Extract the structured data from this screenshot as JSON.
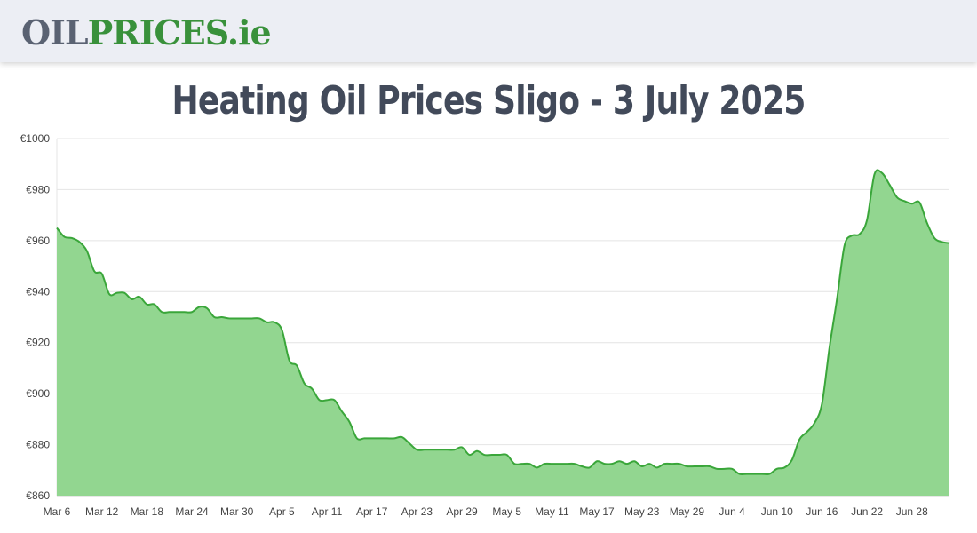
{
  "header": {
    "logo_part1": "OIL",
    "logo_part2": "PRICES.ie",
    "logo_colors": {
      "part1": "#5a6272",
      "part2": "#39913b"
    }
  },
  "page": {
    "title": "Heating Oil Prices Sligo - 3 July 2025"
  },
  "colors": {
    "line": "#3aa63a",
    "fill": "#92d690",
    "grid": "#e4e4e4",
    "title": "#424a5a",
    "header_bg": "#eceef4"
  },
  "chart_data": {
    "type": "area",
    "title": "",
    "xlabel": "",
    "ylabel": "",
    "grid": true,
    "ylim": [
      860,
      1000
    ],
    "y_ticks": [
      "€860",
      "€880",
      "€900",
      "€920",
      "€940",
      "€960",
      "€980",
      "€1000"
    ],
    "x_ticks": [
      "Mar 6",
      "Mar 12",
      "Mar 18",
      "Mar 24",
      "Mar 30",
      "Apr 5",
      "Apr 11",
      "Apr 17",
      "Apr 23",
      "Apr 29",
      "May 5",
      "May 11",
      "May 17",
      "May 23",
      "May 29",
      "Jun 4",
      "Jun 10",
      "Jun 16",
      "Jun 22",
      "Jun 28"
    ],
    "x_start": "2025-03-06",
    "x_end": "2025-07-03",
    "series": [
      {
        "points": [
          [
            "2025-03-06",
            965
          ],
          [
            "2025-03-07",
            961.5
          ],
          [
            "2025-03-08",
            961
          ],
          [
            "2025-03-09",
            959.5
          ],
          [
            "2025-03-10",
            956
          ],
          [
            "2025-03-11",
            948
          ],
          [
            "2025-03-12",
            947
          ],
          [
            "2025-03-13",
            939
          ],
          [
            "2025-03-14",
            939.5
          ],
          [
            "2025-03-15",
            939.5
          ],
          [
            "2025-03-16",
            937
          ],
          [
            "2025-03-17",
            938
          ],
          [
            "2025-03-18",
            935
          ],
          [
            "2025-03-19",
            935
          ],
          [
            "2025-03-20",
            932
          ],
          [
            "2025-03-21",
            932
          ],
          [
            "2025-03-22",
            932
          ],
          [
            "2025-03-23",
            932
          ],
          [
            "2025-03-24",
            932
          ],
          [
            "2025-03-25",
            934
          ],
          [
            "2025-03-26",
            933.5
          ],
          [
            "2025-03-27",
            930
          ],
          [
            "2025-03-28",
            930
          ],
          [
            "2025-03-29",
            929.5
          ],
          [
            "2025-03-30",
            929.5
          ],
          [
            "2025-03-31",
            929.5
          ],
          [
            "2025-04-01",
            929.5
          ],
          [
            "2025-04-02",
            929.5
          ],
          [
            "2025-04-03",
            928
          ],
          [
            "2025-04-04",
            928
          ],
          [
            "2025-04-05",
            925
          ],
          [
            "2025-04-06",
            913
          ],
          [
            "2025-04-07",
            911
          ],
          [
            "2025-04-08",
            904
          ],
          [
            "2025-04-09",
            902
          ],
          [
            "2025-04-10",
            897.5
          ],
          [
            "2025-04-11",
            897.5
          ],
          [
            "2025-04-12",
            897.5
          ],
          [
            "2025-04-13",
            893
          ],
          [
            "2025-04-14",
            889
          ],
          [
            "2025-04-15",
            882.5
          ],
          [
            "2025-04-16",
            882.5
          ],
          [
            "2025-04-17",
            882.5
          ],
          [
            "2025-04-18",
            882.5
          ],
          [
            "2025-04-19",
            882.5
          ],
          [
            "2025-04-20",
            882.5
          ],
          [
            "2025-04-21",
            883
          ],
          [
            "2025-04-22",
            880.5
          ],
          [
            "2025-04-23",
            878
          ],
          [
            "2025-04-24",
            878
          ],
          [
            "2025-04-25",
            878
          ],
          [
            "2025-04-26",
            878
          ],
          [
            "2025-04-27",
            878
          ],
          [
            "2025-04-28",
            878
          ],
          [
            "2025-04-29",
            879
          ],
          [
            "2025-04-30",
            876
          ],
          [
            "2025-05-01",
            877.5
          ],
          [
            "2025-05-02",
            876
          ],
          [
            "2025-05-03",
            876
          ],
          [
            "2025-05-04",
            876
          ],
          [
            "2025-05-05",
            876
          ],
          [
            "2025-05-06",
            872.5
          ],
          [
            "2025-05-07",
            872.5
          ],
          [
            "2025-05-08",
            872.5
          ],
          [
            "2025-05-09",
            871
          ],
          [
            "2025-05-10",
            872.5
          ],
          [
            "2025-05-11",
            872.5
          ],
          [
            "2025-05-12",
            872.5
          ],
          [
            "2025-05-13",
            872.5
          ],
          [
            "2025-05-14",
            872.5
          ],
          [
            "2025-05-15",
            871.5
          ],
          [
            "2025-05-16",
            871
          ],
          [
            "2025-05-17",
            873.5
          ],
          [
            "2025-05-18",
            872.5
          ],
          [
            "2025-05-19",
            872.5
          ],
          [
            "2025-05-20",
            873.5
          ],
          [
            "2025-05-21",
            872.5
          ],
          [
            "2025-05-22",
            873.5
          ],
          [
            "2025-05-23",
            871.5
          ],
          [
            "2025-05-24",
            872.5
          ],
          [
            "2025-05-25",
            871
          ],
          [
            "2025-05-26",
            872.5
          ],
          [
            "2025-05-27",
            872.5
          ],
          [
            "2025-05-28",
            872.5
          ],
          [
            "2025-05-29",
            871.5
          ],
          [
            "2025-05-30",
            871.5
          ],
          [
            "2025-05-31",
            871.5
          ],
          [
            "2025-06-01",
            871.5
          ],
          [
            "2025-06-02",
            870.5
          ],
          [
            "2025-06-03",
            870.5
          ],
          [
            "2025-06-04",
            870.5
          ],
          [
            "2025-06-05",
            868.5
          ],
          [
            "2025-06-06",
            868.5
          ],
          [
            "2025-06-07",
            868.5
          ],
          [
            "2025-06-08",
            868.5
          ],
          [
            "2025-06-09",
            868.5
          ],
          [
            "2025-06-10",
            870.5
          ],
          [
            "2025-06-11",
            871
          ],
          [
            "2025-06-12",
            874
          ],
          [
            "2025-06-13",
            882
          ],
          [
            "2025-06-14",
            885
          ],
          [
            "2025-06-15",
            888.5
          ],
          [
            "2025-06-16",
            896
          ],
          [
            "2025-06-17",
            918
          ],
          [
            "2025-06-18",
            937
          ],
          [
            "2025-06-19",
            958
          ],
          [
            "2025-06-20",
            962
          ],
          [
            "2025-06-21",
            962.5
          ],
          [
            "2025-06-22",
            968
          ],
          [
            "2025-06-23",
            986
          ],
          [
            "2025-06-24",
            986.5
          ],
          [
            "2025-06-25",
            982
          ],
          [
            "2025-06-26",
            977
          ],
          [
            "2025-06-27",
            975.5
          ],
          [
            "2025-06-28",
            974.5
          ],
          [
            "2025-06-29",
            975
          ],
          [
            "2025-06-30",
            967
          ],
          [
            "2025-07-01",
            961
          ],
          [
            "2025-07-02",
            959.5
          ],
          [
            "2025-07-03",
            959
          ]
        ]
      }
    ]
  }
}
